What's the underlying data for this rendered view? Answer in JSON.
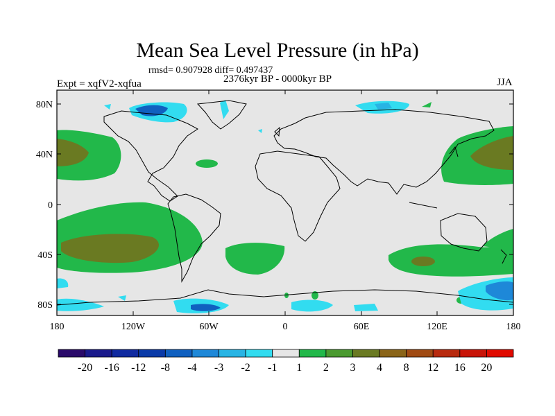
{
  "title": "Mean Sea Level Pressure (in hPa)",
  "stats": "rmsd= 0.907928 diff= 0.497437",
  "period": "2376kyr BP - 0000kyr BP",
  "experiment": "Expt = xqfV2-xqfua",
  "season": "JJA",
  "lat_labels": [
    "80N",
    "40N",
    "0",
    "40S",
    "80S"
  ],
  "lon_labels": [
    "180",
    "120W",
    "60W",
    "0",
    "60E",
    "120E",
    "180"
  ],
  "colorbar": {
    "labels": [
      "-20",
      "-16",
      "-12",
      "-8",
      "-4",
      "-3",
      "-2",
      "-1",
      "1",
      "2",
      "3",
      "4",
      "8",
      "12",
      "16",
      "20"
    ],
    "colors": [
      "#2a0a6a",
      "#1a1a8c",
      "#102aa0",
      "#0a3aa8",
      "#1060c0",
      "#1e88d8",
      "#28b4e4",
      "#32dcf0",
      "#e6e6e6",
      "#22b84a",
      "#4a9a30",
      "#6a7a22",
      "#8a6418",
      "#a04a12",
      "#b82a0e",
      "#c81408",
      "#e00a00"
    ]
  },
  "chart_data": {
    "type": "heatmap",
    "variable": "Mean Sea Level Pressure difference",
    "units": "hPa",
    "lon_range": [
      -180,
      180
    ],
    "lat_range": [
      -90,
      90
    ],
    "anomaly_regions": [
      {
        "name": "North Pacific east",
        "center": [
          -170,
          38
        ],
        "level": 4
      },
      {
        "name": "North Pacific west",
        "center": [
          165,
          38
        ],
        "level": 4
      },
      {
        "name": "South Pacific",
        "center": [
          -150,
          -30
        ],
        "level": 4
      },
      {
        "name": "South Indian Ocean",
        "center": [
          105,
          -40
        ],
        "level": 4
      },
      {
        "name": "South Atlantic",
        "center": [
          -15,
          -38
        ],
        "level": 2
      },
      {
        "name": "North Atlantic",
        "center": [
          -50,
          30
        ],
        "level": 2
      },
      {
        "name": "Arctic Canada",
        "center": [
          -80,
          82
        ],
        "level": -4
      },
      {
        "name": "Antarctic",
        "center": [
          -60,
          -82
        ],
        "level": -4
      }
    ]
  }
}
